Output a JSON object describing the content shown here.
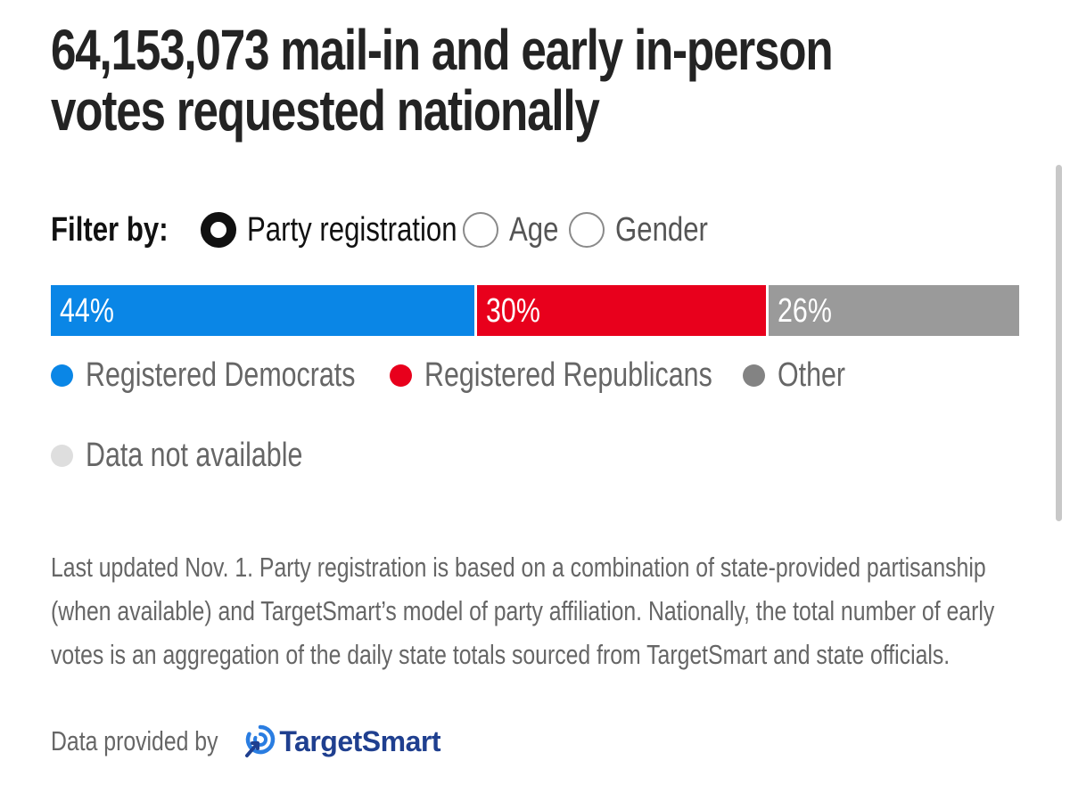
{
  "title": {
    "line1": "64,153,073 mail-in and early in-person",
    "line2": "votes requested nationally"
  },
  "filter": {
    "label": "Filter by:",
    "options": [
      {
        "label": "Party registration",
        "selected": true
      },
      {
        "label": "Age",
        "selected": false
      },
      {
        "label": "Gender",
        "selected": false
      }
    ]
  },
  "chart_data": {
    "type": "bar",
    "orientation": "horizontal-stacked-100",
    "categories": [
      "Registered Democrats",
      "Registered Republicans",
      "Other"
    ],
    "values": [
      44,
      30,
      26
    ],
    "labels": [
      "44%",
      "30%",
      "26%"
    ],
    "colors": [
      "#0a86e6",
      "#e8001c",
      "#9a9a9a"
    ]
  },
  "legend": [
    {
      "label": "Registered Democrats",
      "color": "#0a86e6"
    },
    {
      "label": "Registered Republicans",
      "color": "#e8001c"
    },
    {
      "label": "Other",
      "color": "#838383"
    },
    {
      "label": "Data not available",
      "color": "#dedede"
    }
  ],
  "note": "Last updated Nov. 1. Party registration is based on a combination of state-provided partisanship (when available) and TargetSmart’s model of party affiliation. Nationally, the total number of early votes is an aggregation of the daily state totals sourced from TargetSmart and state officials.",
  "credit": {
    "label": "Data provided by",
    "logo_text": "TargetSmart",
    "logo_icon": "targetsmart-logo-icon"
  }
}
